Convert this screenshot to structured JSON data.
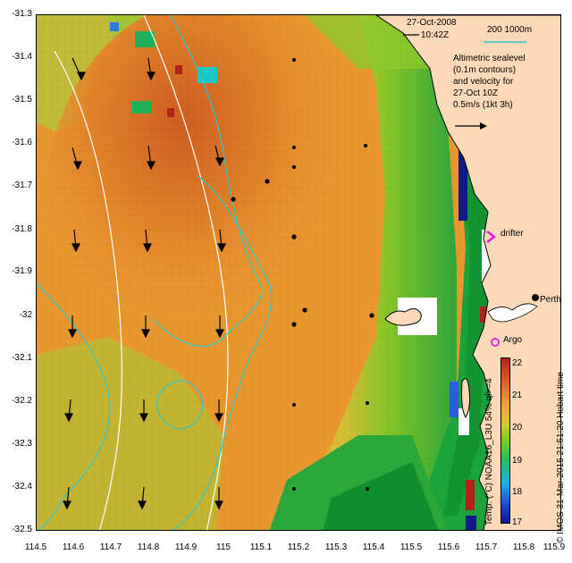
{
  "header": {
    "date": "27-Oct-2008",
    "time": "10:42Z",
    "scale_label": "200  1000m"
  },
  "legend": {
    "line1": "Altimetric sealevel",
    "line2": "(0.1m contours)",
    "line3": "and velocity for",
    "line4": "27-Oct 10Z",
    "line5": "0.5m/s (1kt 3h)"
  },
  "places": {
    "drifter": "drifter",
    "perth": "Perth",
    "argo": "Argo"
  },
  "axes": {
    "yticks": [
      "-31.3",
      "-31.4",
      "-31.5",
      "-31.6",
      "-31.7",
      "-31.8",
      "-31.9",
      "-32",
      "-32.1",
      "-32.2",
      "-32.3",
      "-32.4",
      "-32.5"
    ],
    "xticks": [
      "114.5",
      "114.6",
      "114.7",
      "114.8",
      "114.9",
      "115",
      "115.1",
      "115.2",
      "115.3",
      "115.4",
      "115.5",
      "115.6",
      "115.7",
      "115.8",
      "115.9"
    ]
  },
  "colorbar": {
    "labels": [
      "22",
      "21",
      "20",
      "19",
      "18",
      "17"
    ],
    "title": "Temp. (°C) NOAA16_L3U 54% ql>=4"
  },
  "credit": "© IMOS 31-Mar-2015 21:51:20 Hobart time",
  "colors": {
    "land": "#fcd9b8",
    "contour_cyan": "#2ec8c8",
    "drifter_magenta": "#e020e0",
    "warm": "#e08a2c",
    "cool": "#2fae3c"
  }
}
